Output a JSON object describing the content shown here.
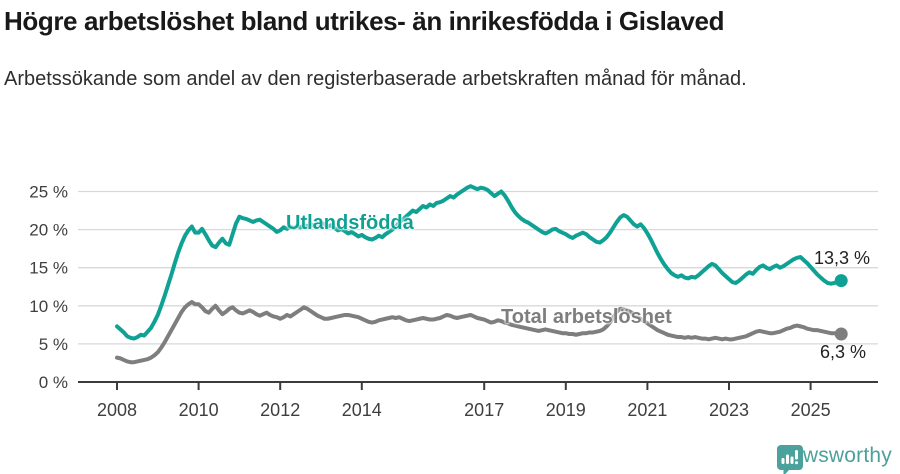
{
  "header": {
    "title": "Högre arbetslöshet bland utrikes- än inrikesfödda i Gislaved",
    "subtitle": "Arbetssökande som andel av den registerbaserade arbetskraften månad för månad."
  },
  "chart": {
    "series_labels": {
      "utlandsfodda": "Utlandsfödda",
      "total": "Total arbetslöshet"
    },
    "end_labels": {
      "utlandsfodda": "13,3 %",
      "total": "6,3 %"
    },
    "colors": {
      "utlandsfodda": "#0fa294",
      "total": "#7e7e7e",
      "grid": "#d9d9d9",
      "axis": "#3c3c3c",
      "tick_text": "#3f3f3f"
    }
  },
  "footer": {
    "brand": "Newsworthy",
    "brand_color": "#4ba19c"
  },
  "chart_data": {
    "type": "line",
    "title": "Högre arbetslöshet bland utrikes- än inrikesfödda i Gislaved",
    "subtitle": "Arbetssökande som andel av den registerbaserade arbetskraften månad för månad.",
    "frequency": "monthly",
    "x_start": "2008-01",
    "x_end": "2025-10",
    "xlabel": "",
    "ylabel": "",
    "ylim": [
      0,
      26
    ],
    "grid": "horizontal",
    "y_tick_values": [
      0,
      5,
      10,
      15,
      20,
      25
    ],
    "y_tick_labels": [
      "0 %",
      "5 %",
      "10 %",
      "15 %",
      "20 %",
      "25 %"
    ],
    "x_tick_years": [
      2008,
      2010,
      2012,
      2014,
      2017,
      2019,
      2021,
      2023,
      2025
    ],
    "x_tick_labels": [
      "2008",
      "2010",
      "2012",
      "2014",
      "2017",
      "2019",
      "2021",
      "2023",
      "2025"
    ],
    "end_values": [
      13.3,
      6.3
    ],
    "series": [
      {
        "name": "Utlandsfödda",
        "color": "#0fa294",
        "values": [
          7.3,
          6.9,
          6.5,
          6.0,
          5.8,
          5.7,
          5.9,
          6.2,
          6.1,
          6.6,
          7.1,
          7.9,
          8.8,
          10.0,
          11.3,
          12.7,
          14.1,
          15.6,
          17.0,
          18.2,
          19.2,
          19.9,
          20.4,
          19.6,
          19.6,
          20.1,
          19.4,
          18.6,
          17.9,
          17.7,
          18.3,
          18.8,
          18.2,
          18.0,
          19.4,
          20.8,
          21.7,
          21.5,
          21.4,
          21.2,
          21.0,
          21.2,
          21.3,
          21.0,
          20.7,
          20.4,
          20.1,
          19.7,
          19.9,
          20.3,
          20.1,
          20.4,
          20.2,
          20.5,
          20.3,
          20.6,
          20.4,
          20.7,
          20.5,
          20.8,
          20.9,
          20.7,
          20.4,
          20.6,
          20.2,
          19.9,
          20.1,
          19.8,
          19.5,
          19.7,
          19.4,
          19.1,
          19.3,
          19.0,
          18.8,
          18.7,
          18.9,
          19.2,
          19.0,
          19.4,
          19.7,
          20.0,
          20.4,
          20.9,
          21.3,
          21.7,
          22.1,
          22.5,
          22.3,
          22.7,
          23.1,
          22.9,
          23.3,
          23.1,
          23.5,
          23.6,
          23.8,
          24.1,
          24.4,
          24.2,
          24.6,
          24.9,
          25.2,
          25.5,
          25.7,
          25.5,
          25.3,
          25.5,
          25.4,
          25.2,
          24.8,
          24.4,
          24.7,
          25.0,
          24.5,
          23.8,
          23.0,
          22.3,
          21.8,
          21.4,
          21.1,
          20.9,
          20.6,
          20.3,
          20.0,
          19.7,
          19.5,
          19.7,
          20.0,
          20.1,
          19.8,
          19.6,
          19.4,
          19.1,
          18.9,
          19.2,
          19.4,
          19.6,
          19.4,
          19.0,
          18.7,
          18.4,
          18.3,
          18.6,
          19.0,
          19.6,
          20.3,
          21.0,
          21.6,
          21.9,
          21.7,
          21.2,
          20.7,
          20.4,
          20.7,
          20.2,
          19.5,
          18.7,
          17.8,
          16.9,
          16.1,
          15.4,
          14.8,
          14.3,
          14.0,
          13.8,
          14.0,
          13.7,
          13.6,
          13.8,
          13.7,
          14.0,
          14.4,
          14.8,
          15.2,
          15.5,
          15.3,
          14.8,
          14.3,
          13.9,
          13.5,
          13.1,
          13.0,
          13.3,
          13.7,
          14.1,
          14.4,
          14.2,
          14.7,
          15.1,
          15.3,
          15.0,
          14.8,
          15.1,
          15.3,
          15.0,
          15.2,
          15.5,
          15.8,
          16.1,
          16.3,
          16.4,
          16.0,
          15.6,
          15.1,
          14.6,
          14.1,
          13.7,
          13.3,
          13.0,
          12.9,
          13.0,
          13.1,
          13.3
        ]
      },
      {
        "name": "Total arbetslöshet",
        "color": "#7e7e7e",
        "values": [
          3.2,
          3.1,
          2.9,
          2.7,
          2.6,
          2.6,
          2.7,
          2.8,
          2.9,
          3.0,
          3.2,
          3.5,
          3.9,
          4.5,
          5.2,
          6.0,
          6.8,
          7.6,
          8.4,
          9.2,
          9.8,
          10.2,
          10.5,
          10.2,
          10.2,
          9.8,
          9.3,
          9.1,
          9.6,
          10.0,
          9.4,
          8.9,
          9.2,
          9.6,
          9.8,
          9.4,
          9.1,
          9.0,
          9.2,
          9.4,
          9.2,
          8.9,
          8.7,
          8.9,
          9.1,
          8.8,
          8.6,
          8.5,
          8.3,
          8.5,
          8.8,
          8.6,
          8.9,
          9.2,
          9.5,
          9.8,
          9.6,
          9.3,
          9.0,
          8.7,
          8.5,
          8.3,
          8.3,
          8.4,
          8.5,
          8.6,
          8.7,
          8.8,
          8.8,
          8.7,
          8.6,
          8.5,
          8.3,
          8.1,
          7.9,
          7.8,
          7.9,
          8.1,
          8.2,
          8.3,
          8.4,
          8.5,
          8.4,
          8.5,
          8.3,
          8.1,
          8.0,
          8.1,
          8.2,
          8.3,
          8.4,
          8.3,
          8.2,
          8.2,
          8.3,
          8.4,
          8.6,
          8.8,
          8.7,
          8.5,
          8.4,
          8.5,
          8.6,
          8.7,
          8.8,
          8.6,
          8.4,
          8.3,
          8.2,
          8.0,
          7.8,
          7.9,
          8.1,
          8.0,
          7.8,
          7.7,
          7.5,
          7.4,
          7.3,
          7.2,
          7.1,
          7.0,
          6.9,
          6.8,
          6.7,
          6.8,
          6.9,
          6.8,
          6.7,
          6.6,
          6.5,
          6.4,
          6.4,
          6.3,
          6.3,
          6.2,
          6.3,
          6.4,
          6.4,
          6.5,
          6.5,
          6.6,
          6.7,
          6.9,
          7.3,
          7.8,
          8.5,
          9.2,
          9.6,
          9.5,
          9.4,
          9.2,
          8.9,
          8.6,
          8.3,
          8.0,
          7.7,
          7.4,
          7.1,
          6.8,
          6.6,
          6.4,
          6.2,
          6.1,
          6.0,
          5.9,
          5.9,
          5.8,
          5.9,
          5.8,
          5.9,
          5.8,
          5.7,
          5.7,
          5.6,
          5.7,
          5.8,
          5.7,
          5.6,
          5.7,
          5.6,
          5.6,
          5.7,
          5.8,
          5.9,
          6.0,
          6.2,
          6.4,
          6.6,
          6.7,
          6.6,
          6.5,
          6.4,
          6.4,
          6.5,
          6.6,
          6.8,
          7.0,
          7.1,
          7.3,
          7.4,
          7.3,
          7.2,
          7.0,
          6.9,
          6.8,
          6.8,
          6.7,
          6.6,
          6.5,
          6.4,
          6.4,
          6.3,
          6.3
        ]
      }
    ]
  }
}
